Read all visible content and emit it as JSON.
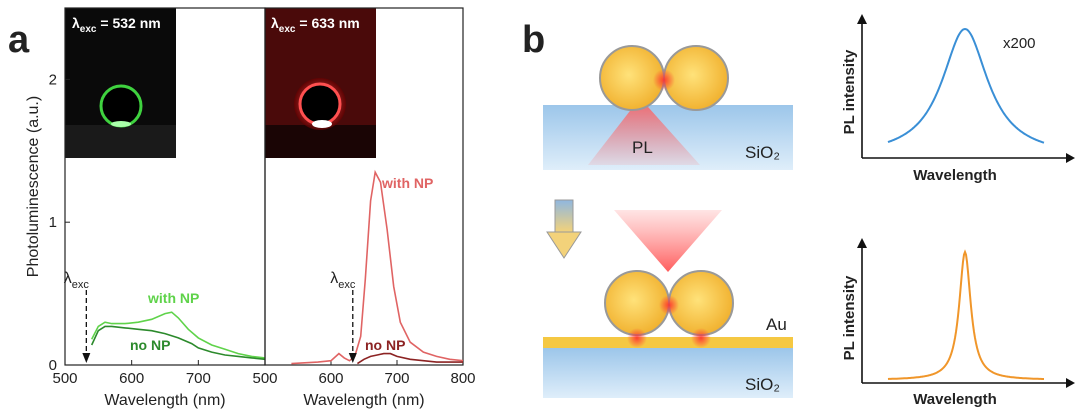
{
  "panel_labels": [
    "a",
    "b"
  ],
  "chart_data": [
    {
      "type": "line",
      "ylabel": "Photoluminescence (a.u.)",
      "xlabel": "Wavelength (nm)",
      "xlim": [
        500,
        800
      ],
      "xticks": [
        500,
        600,
        700
      ],
      "ylim": [
        0,
        2.5
      ],
      "yticks": [
        0,
        1,
        2
      ],
      "inset_label": {
        "symbol": "λ",
        "sub": "exc",
        "rest": " = 532 nm"
      },
      "excitation": {
        "value": 532,
        "symbol": "λ",
        "sub": "exc"
      },
      "series": [
        {
          "name": "with NP",
          "color": "#5fd34a",
          "x": [
            540,
            550,
            560,
            570,
            590,
            610,
            630,
            650,
            660,
            670,
            685,
            700,
            720,
            740,
            760,
            780,
            800
          ],
          "values": [
            0.18,
            0.27,
            0.3,
            0.29,
            0.29,
            0.3,
            0.32,
            0.36,
            0.37,
            0.33,
            0.25,
            0.19,
            0.14,
            0.11,
            0.08,
            0.06,
            0.05
          ]
        },
        {
          "name": "no NP",
          "color": "#2c8a2c",
          "x": [
            540,
            550,
            560,
            570,
            590,
            610,
            630,
            650,
            670,
            690,
            700,
            720,
            740,
            760,
            780,
            800
          ],
          "values": [
            0.14,
            0.24,
            0.27,
            0.27,
            0.26,
            0.25,
            0.24,
            0.22,
            0.19,
            0.15,
            0.12,
            0.09,
            0.07,
            0.06,
            0.05,
            0.04
          ]
        }
      ]
    },
    {
      "type": "line",
      "xlabel": "Wavelength (nm)",
      "xlim": [
        500,
        800
      ],
      "xticks": [
        500,
        600,
        700,
        800
      ],
      "ylim": [
        0,
        2.5
      ],
      "inset_label": {
        "symbol": "λ",
        "sub": "exc",
        "rest": " = 633 nm"
      },
      "excitation": {
        "value": 633,
        "symbol": "λ",
        "sub": "exc"
      },
      "series": [
        {
          "name": "with NP",
          "color": "#e06464",
          "x": [
            540,
            580,
            600,
            612,
            620,
            628,
            636,
            645,
            652,
            660,
            667,
            675,
            685,
            695,
            705,
            720,
            740,
            760,
            780,
            800
          ],
          "values": [
            0.01,
            0.02,
            0.03,
            0.08,
            0.05,
            0.03,
            0.06,
            0.2,
            0.6,
            1.15,
            1.35,
            1.28,
            0.95,
            0.55,
            0.3,
            0.16,
            0.09,
            0.06,
            0.04,
            0.03
          ]
        },
        {
          "name": "no NP",
          "color": "#8c2323",
          "x": [
            640,
            650,
            660,
            670,
            680,
            690,
            700,
            720,
            740,
            760,
            800
          ],
          "values": [
            0.01,
            0.04,
            0.06,
            0.07,
            0.08,
            0.08,
            0.06,
            0.04,
            0.03,
            0.02,
            0.02
          ]
        }
      ]
    }
  ],
  "schematic": {
    "pl": "PL",
    "upper_substrate": "SiO₂",
    "metal": "Au",
    "lower_substrate": "SiO₂"
  },
  "spectra": [
    {
      "ylabel": "PL intensity",
      "xlabel": "Wavelength",
      "annotation": "x200"
    },
    {
      "ylabel": "PL intensity",
      "xlabel": "Wavelength"
    }
  ]
}
